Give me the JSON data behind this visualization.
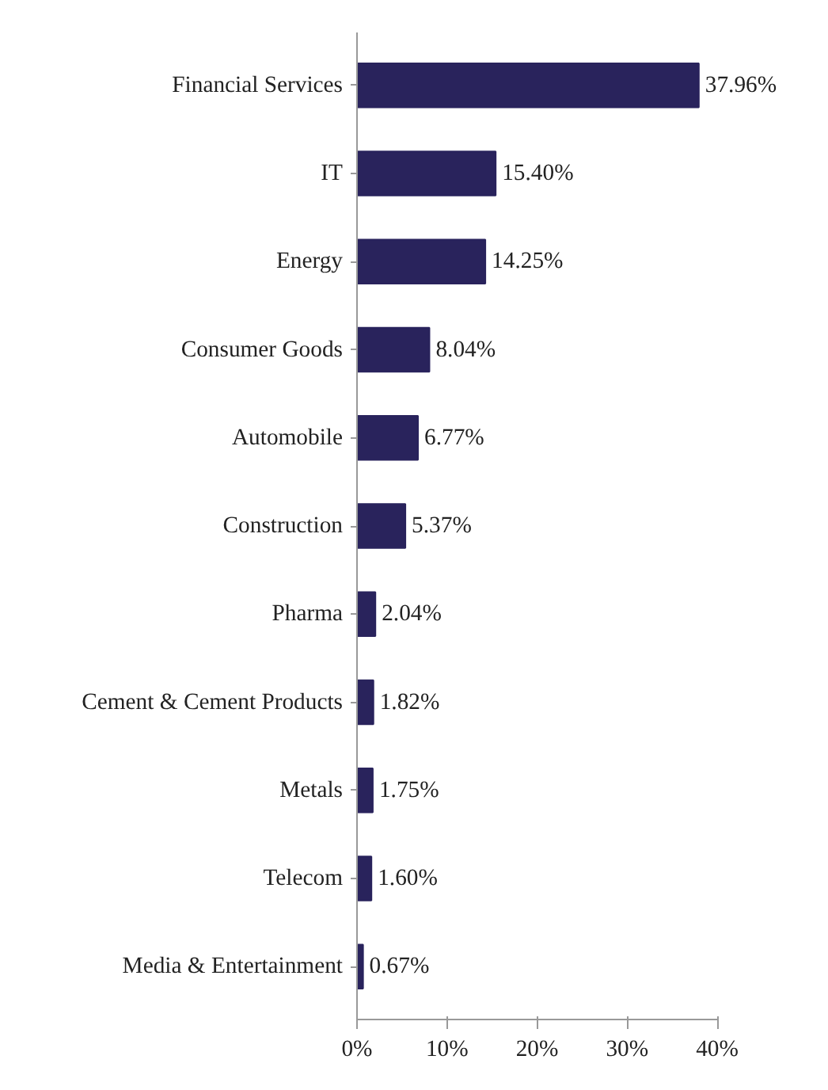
{
  "chart_data": {
    "type": "bar",
    "orientation": "horizontal",
    "categories": [
      "Financial Services",
      "IT",
      "Energy",
      "Consumer Goods",
      "Automobile",
      "Construction",
      "Pharma",
      "Cement & Cement Products",
      "Metals",
      "Telecom",
      "Media & Entertainment"
    ],
    "values": [
      37.96,
      15.4,
      14.25,
      8.04,
      6.77,
      5.37,
      2.04,
      1.82,
      1.75,
      1.6,
      0.67
    ],
    "value_labels": [
      "37.96%",
      "15.40%",
      "14.25%",
      "8.04%",
      "6.77%",
      "5.37%",
      "2.04%",
      "1.82%",
      "1.75%",
      "1.60%",
      "0.67%"
    ],
    "color": "#29235c",
    "xlim": [
      0,
      40
    ],
    "xticks": [
      {
        "value": 0,
        "label": "0%"
      },
      {
        "value": 10,
        "label": "10%"
      },
      {
        "value": 20,
        "label": "20%"
      },
      {
        "value": 30,
        "label": "30%"
      },
      {
        "value": 40,
        "label": "40%"
      }
    ],
    "grid": false
  }
}
